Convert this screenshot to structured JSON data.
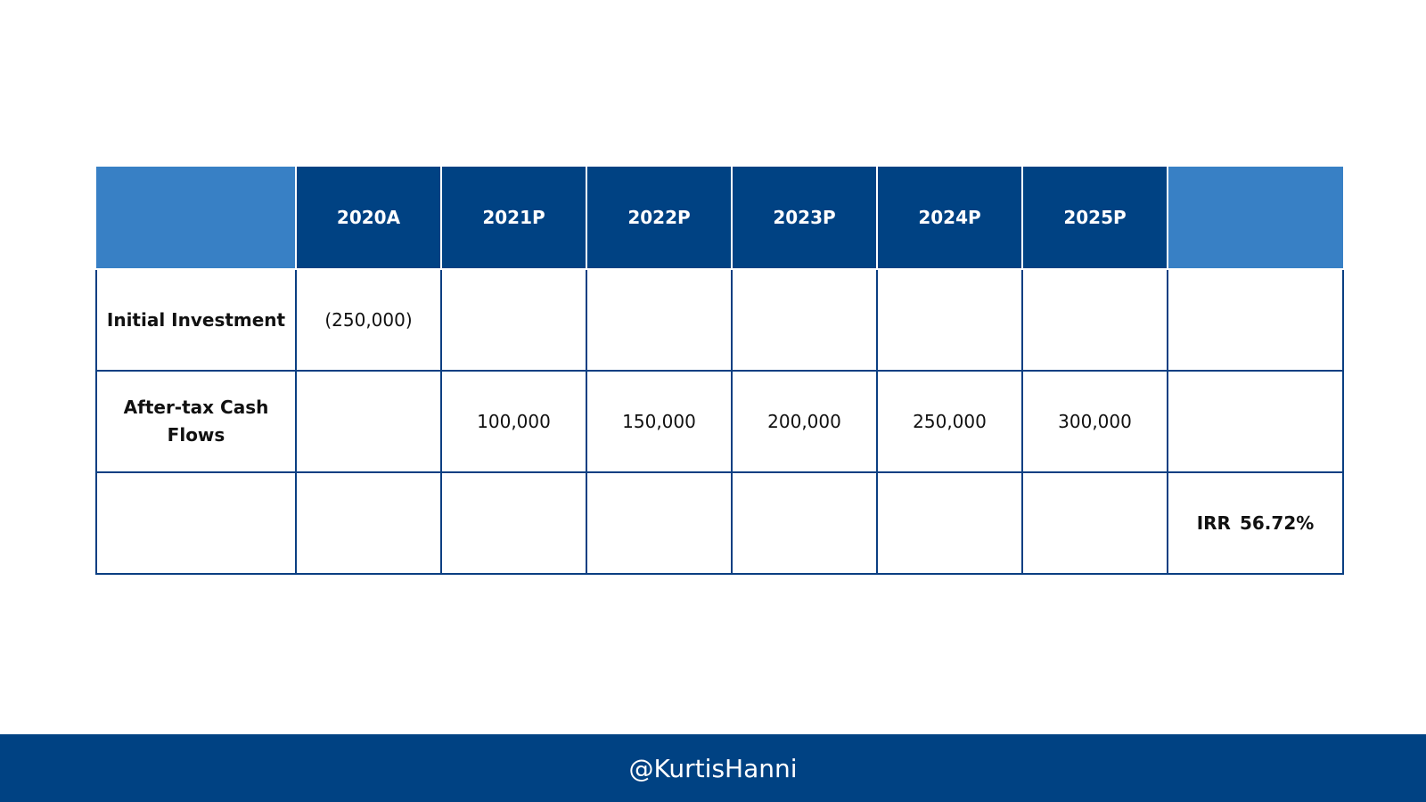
{
  "table": {
    "headers": [
      "",
      "2020A",
      "2021P",
      "2022P",
      "2023P",
      "2024P",
      "2025P",
      ""
    ],
    "rows": [
      {
        "label": "Initial Investment",
        "cells": [
          "(250,000)",
          "",
          "",
          "",
          "",
          "",
          ""
        ]
      },
      {
        "label": "After-tax Cash Flows",
        "cells": [
          "",
          "100,000",
          "150,000",
          "200,000",
          "250,000",
          "300,000",
          ""
        ]
      },
      {
        "label": "",
        "cells": [
          "",
          "",
          "",
          "",
          "",
          "",
          ""
        ]
      }
    ],
    "irr": {
      "label": "IRR",
      "value": "56.72%"
    }
  },
  "colors": {
    "header_dark": "#004283",
    "header_light": "#3880c5",
    "border": "#0b3f82",
    "footer_bg": "#004283"
  },
  "footer": {
    "handle": "@KurtisHanni"
  }
}
